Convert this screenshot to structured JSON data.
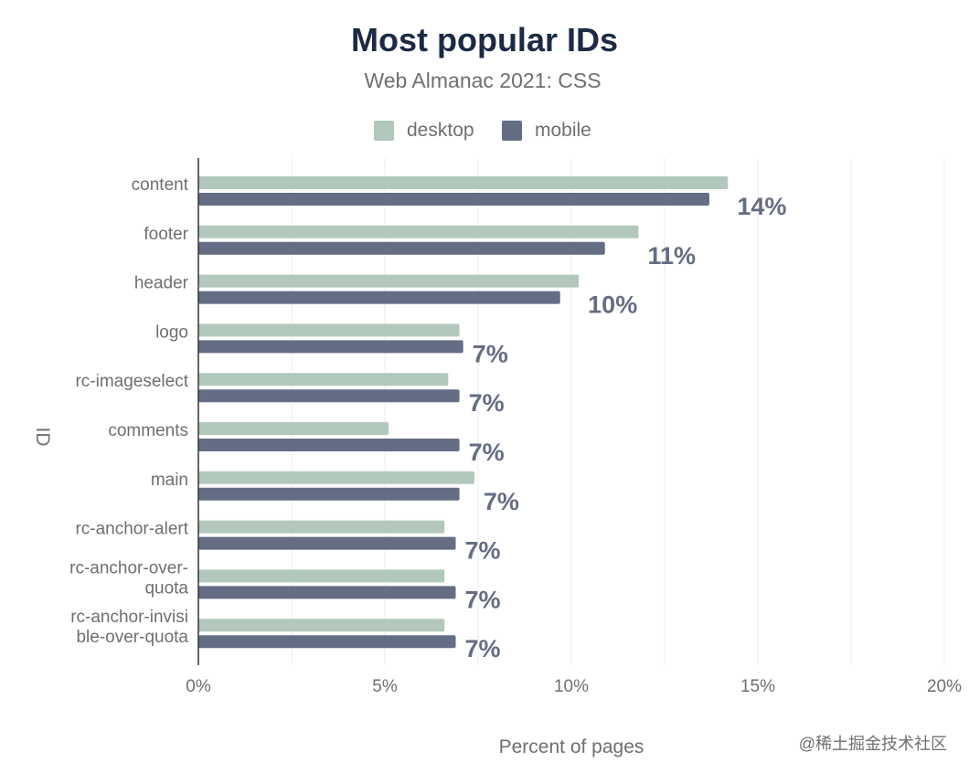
{
  "chart_data": {
    "type": "bar",
    "orientation": "horizontal",
    "title": "Most popular IDs",
    "subtitle": "Web Almanac 2021: CSS",
    "xlabel": "Percent of pages",
    "ylabel": "ID",
    "xlim": [
      0,
      20
    ],
    "xticks": [
      "0%",
      "5%",
      "10%",
      "15%",
      "20%"
    ],
    "xtick_values": [
      0,
      5,
      10,
      15,
      20
    ],
    "grid": true,
    "legend_position": "top-center",
    "categories": [
      "content",
      "footer",
      "header",
      "logo",
      "rc-imageselect",
      "comments",
      "main",
      "rc-anchor-alert",
      "rc-anchor-over-quota",
      "rc-anchor-invisible-over-quota"
    ],
    "category_label_lines": [
      [
        "content"
      ],
      [
        "footer"
      ],
      [
        "header"
      ],
      [
        "logo"
      ],
      [
        "rc-imageselect"
      ],
      [
        "comments"
      ],
      [
        "main"
      ],
      [
        "rc-anchor-alert"
      ],
      [
        "rc-anchor-over-",
        "quota"
      ],
      [
        "rc-anchor-invisi",
        "ble-over-quota"
      ]
    ],
    "series": [
      {
        "name": "desktop",
        "color": "#b3c8bc",
        "values": [
          14.2,
          11.8,
          10.2,
          7.0,
          6.7,
          5.1,
          7.4,
          6.6,
          6.6,
          6.6
        ]
      },
      {
        "name": "mobile",
        "color": "#656d84",
        "values": [
          13.7,
          10.9,
          9.7,
          7.1,
          7.0,
          7.0,
          7.0,
          6.9,
          6.9,
          6.9
        ]
      }
    ],
    "data_labels": [
      "14%",
      "11%",
      "10%",
      "7%",
      "7%",
      "7%",
      "7%",
      "7%",
      "7%",
      "7%"
    ]
  },
  "colors": {
    "title": "#1c2a44",
    "subtitle": "#6f6f6f",
    "tick_text": "#6f6f6f",
    "data_label": "#656d84",
    "grid": "#ececec",
    "axis": "#333333"
  },
  "watermark": "@稀土掘金技术社区"
}
